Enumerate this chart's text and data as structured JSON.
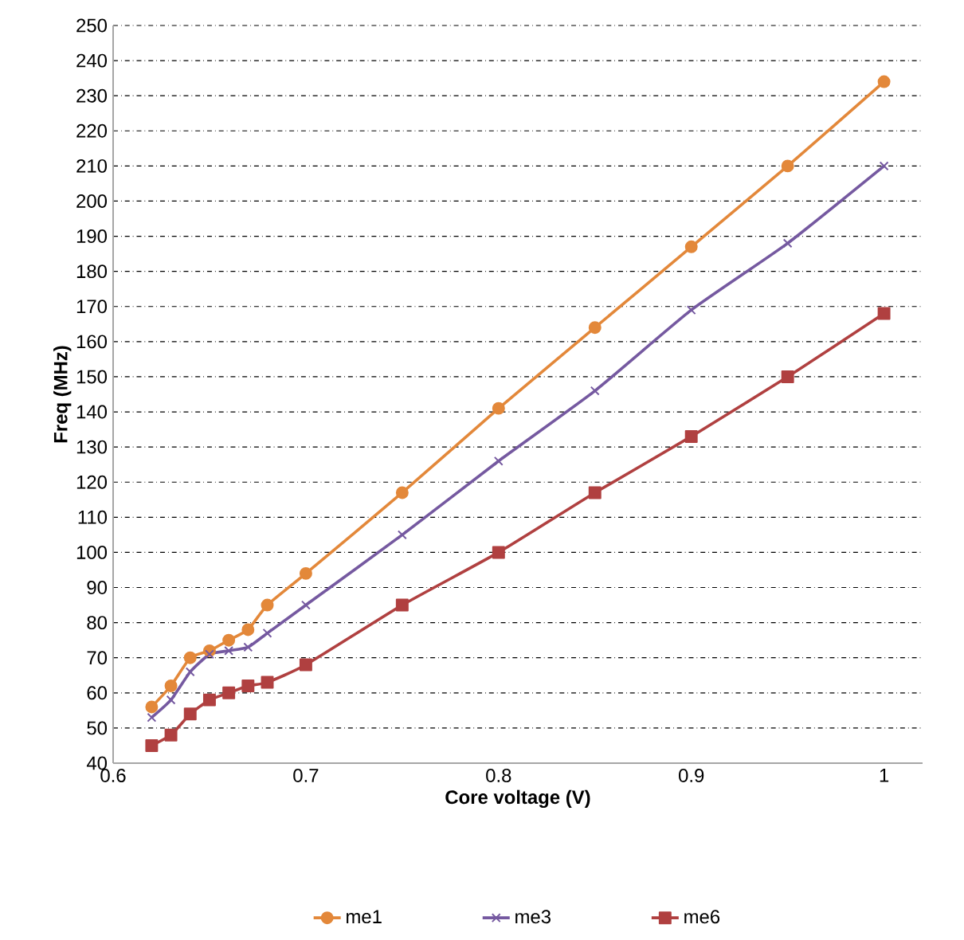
{
  "chart_data": {
    "type": "line",
    "xlabel": "Core voltage (V)",
    "ylabel": "Freq (MHz)",
    "x": [
      0.62,
      0.63,
      0.64,
      0.65,
      0.66,
      0.67,
      0.68,
      0.7,
      0.75,
      0.8,
      0.85,
      0.9,
      0.95,
      1.0
    ],
    "series": [
      {
        "name": "me1",
        "color": "#e3883a",
        "marker": "circle",
        "values": [
          56,
          62,
          70,
          72,
          75,
          78,
          85,
          94,
          117,
          141,
          164,
          187,
          210,
          234
        ]
      },
      {
        "name": "me3",
        "color": "#7559a0",
        "marker": "cross",
        "values": [
          53,
          58,
          66,
          71,
          72,
          73,
          77,
          85,
          105,
          126,
          146,
          169,
          188,
          210
        ]
      },
      {
        "name": "me6",
        "color": "#b04040",
        "marker": "square",
        "values": [
          45,
          48,
          54,
          58,
          60,
          62,
          63,
          68,
          85,
          100,
          117,
          133,
          150,
          168
        ]
      }
    ],
    "xlim": [
      0.6,
      1.02
    ],
    "ylim": [
      40,
      250
    ],
    "xticks": [
      0.6,
      0.7,
      0.8,
      0.9,
      1
    ],
    "yticks": [
      40,
      50,
      60,
      70,
      80,
      90,
      100,
      110,
      120,
      130,
      140,
      150,
      160,
      170,
      180,
      190,
      200,
      210,
      220,
      230,
      240,
      250
    ],
    "grid": "y",
    "legend": "bottom",
    "line_style": "solid"
  }
}
